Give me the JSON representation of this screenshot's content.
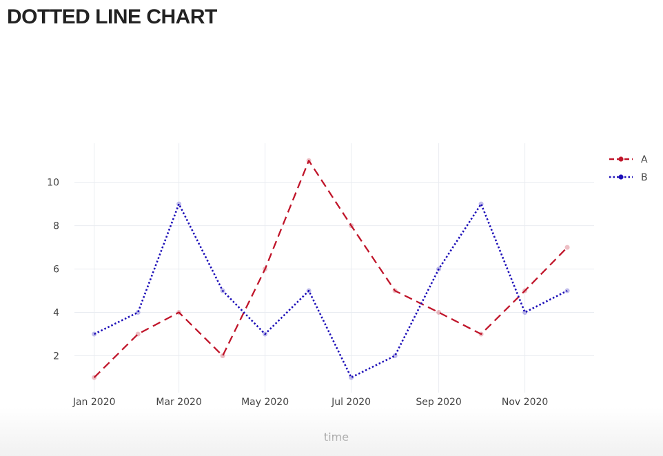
{
  "page": {
    "title": "DOTTED LINE CHART"
  },
  "chart_data": {
    "type": "line",
    "title": "",
    "xlabel": "time",
    "ylabel": "",
    "x": [
      "2020-01-01",
      "2020-02-01",
      "2020-03-01",
      "2020-04-01",
      "2020-05-01",
      "2020-06-01",
      "2020-07-01",
      "2020-08-01",
      "2020-09-01",
      "2020-10-01",
      "2020-11-01",
      "2020-12-01"
    ],
    "x_tick_labels": [
      "Jan 2020",
      "Mar 2020",
      "May 2020",
      "Jul 2020",
      "Sep 2020",
      "Nov 2020"
    ],
    "y_tick_labels": [
      "2",
      "4",
      "6",
      "8",
      "10"
    ],
    "ylim": [
      0.3,
      11.8
    ],
    "grid": true,
    "legend_position": "top-right",
    "series": [
      {
        "name": "A",
        "color": "#c0152a",
        "line_style": "dashed",
        "values": [
          1,
          3,
          4,
          2,
          6,
          11,
          8,
          5,
          4,
          3,
          5,
          7
        ]
      },
      {
        "name": "B",
        "color": "#1d0fb8",
        "line_style": "dotted",
        "values": [
          3,
          4,
          9,
          5,
          3,
          5,
          1,
          2,
          6,
          9,
          4,
          5
        ]
      }
    ]
  }
}
